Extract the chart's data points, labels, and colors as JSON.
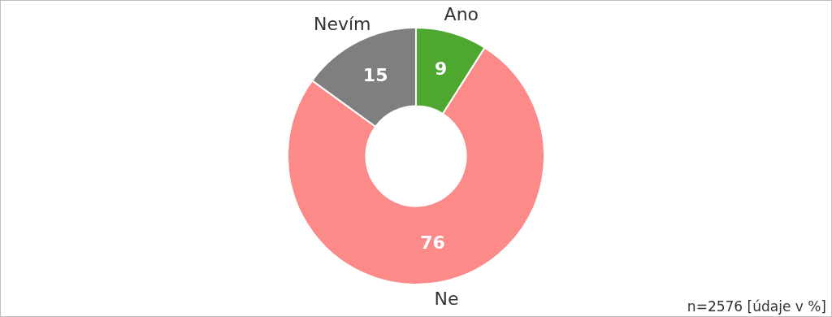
{
  "chart_data": {
    "type": "donut",
    "categories": [
      "Ano",
      "Ne",
      "Nevím"
    ],
    "values": [
      9,
      76,
      15
    ],
    "colors": [
      "#4ea72e",
      "#fb8a88",
      "#7f7f7f"
    ],
    "data_labels": true,
    "legend": false,
    "annotations": [
      "n=2576 [údaje v %]"
    ]
  }
}
